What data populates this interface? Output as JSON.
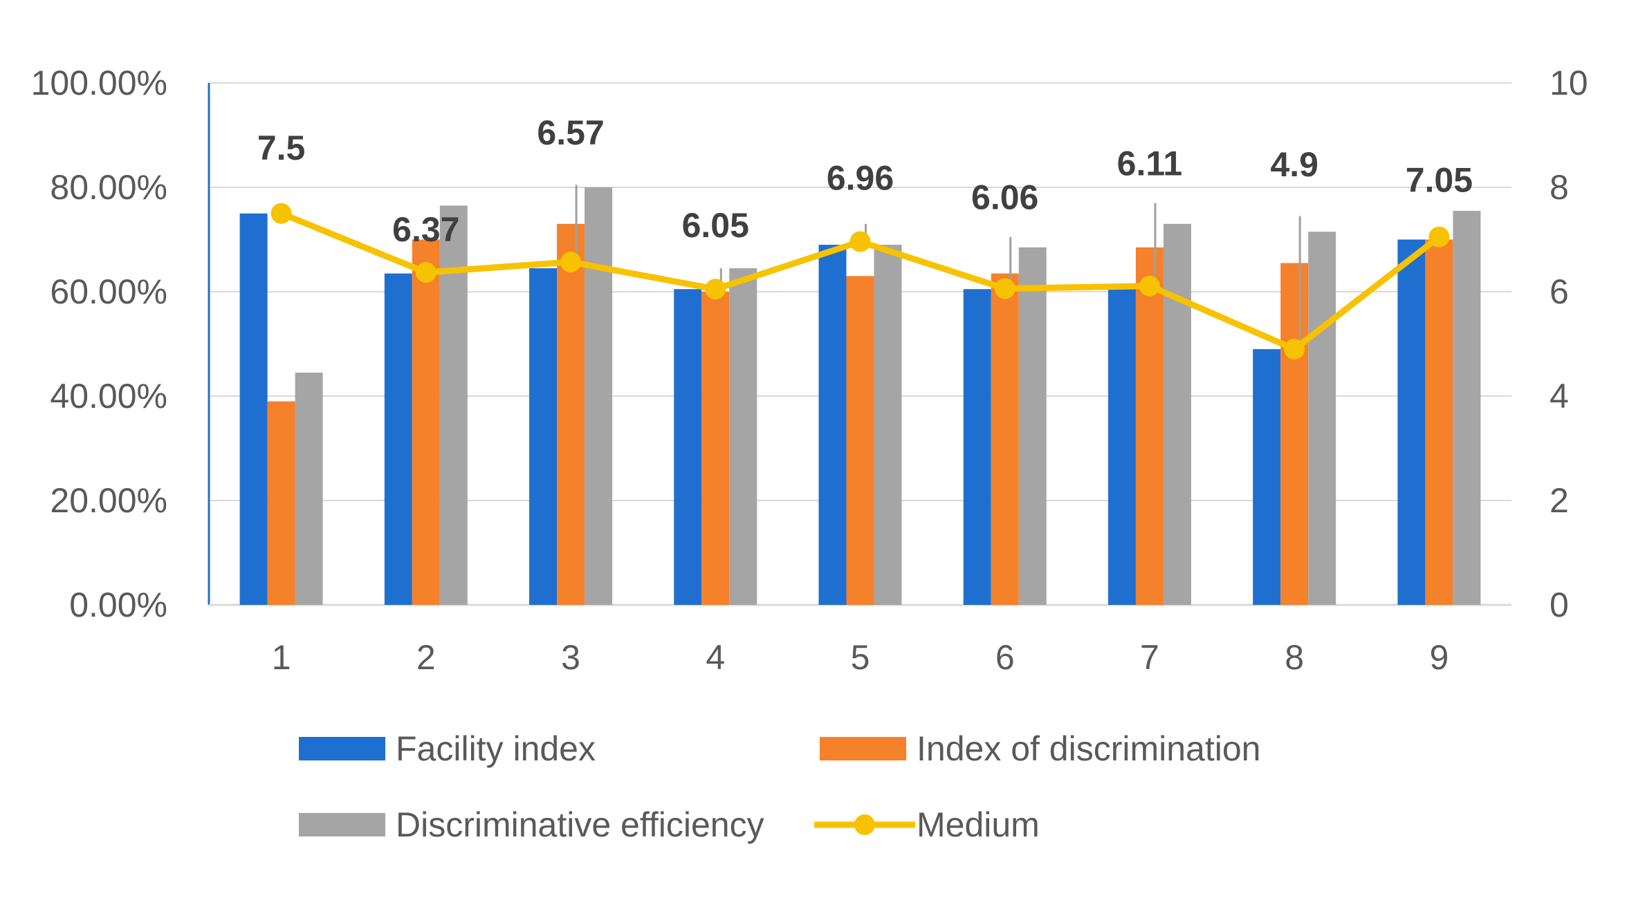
{
  "chart_data": {
    "type": "bar",
    "categories": [
      "1",
      "2",
      "3",
      "4",
      "5",
      "6",
      "7",
      "8",
      "9"
    ],
    "series": [
      {
        "name": "Facility index",
        "axis": "left",
        "unit": "percent",
        "color": "#1f6fd0",
        "values": [
          75,
          63.5,
          64.5,
          60.5,
          69,
          60.5,
          61.5,
          49,
          70
        ]
      },
      {
        "name": "Index of discrimination",
        "axis": "left",
        "unit": "percent",
        "color": "#f5812b",
        "values": [
          39,
          70,
          73,
          60,
          63,
          63.5,
          68.5,
          65.5,
          70
        ]
      },
      {
        "name": "Discriminative efficiency",
        "axis": "left",
        "unit": "percent",
        "color": "#a5a5a5",
        "values": [
          44.5,
          76.5,
          80,
          64.5,
          69,
          68.5,
          73,
          71.5,
          75.5
        ]
      }
    ],
    "line_series": {
      "name": "Medium",
      "axis": "right",
      "color": "#f7c200",
      "values": [
        7.5,
        6.37,
        6.57,
        6.05,
        6.96,
        6.06,
        6.11,
        4.9,
        7.05
      ],
      "labels": [
        "7.5",
        "6.37",
        "6.57",
        "6.05",
        "6.96",
        "6.06",
        "6.11",
        "4.9",
        "7.05"
      ]
    },
    "error_bar_tops": [
      null,
      null,
      80.5,
      64.5,
      73,
      70.5,
      77,
      74.5,
      null
    ],
    "y_left": {
      "ylim": [
        0,
        100
      ],
      "ticks": [
        "0.00%",
        "20.00%",
        "40.00%",
        "60.00%",
        "80.00%",
        "100.00%"
      ]
    },
    "y_right": {
      "ylim": [
        0,
        10
      ],
      "ticks": [
        "0",
        "2",
        "4",
        "6",
        "8",
        "10"
      ]
    },
    "title": "",
    "xlabel": "",
    "ylabel": "",
    "grid": true,
    "legend": {
      "position": "bottom",
      "entries": [
        "Facility index",
        "Index of discrimination",
        "Discriminative efficiency",
        "Medium"
      ]
    }
  }
}
